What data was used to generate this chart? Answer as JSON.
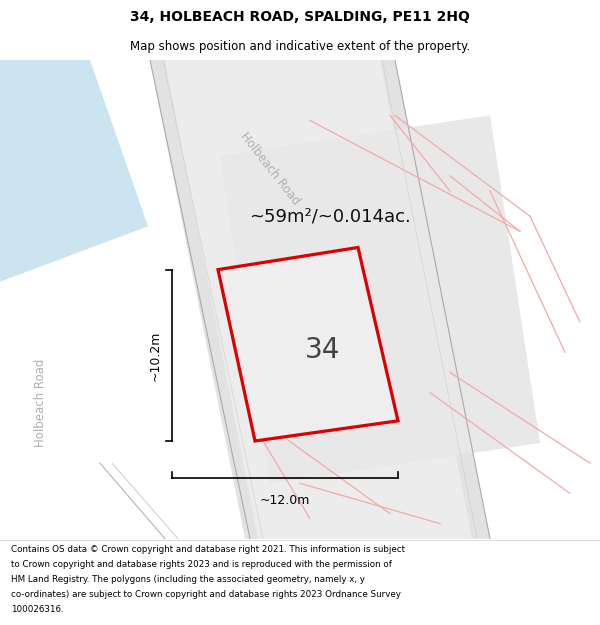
{
  "title": "34, HOLBEACH ROAD, SPALDING, PE11 2HQ",
  "subtitle": "Map shows position and indicative extent of the property.",
  "area_text": "~59m²/~0.014ac.",
  "label_34": "34",
  "dim_height": "~10.2m",
  "dim_width": "~12.0m",
  "road_label_diagonal": "Holbeach Road",
  "road_label_left": "Holbeach Road",
  "footer_lines": [
    "Contains OS data © Crown copyright and database right 2021. This information is subject",
    "to Crown copyright and database rights 2023 and is reproduced with the permission of",
    "HM Land Registry. The polygons (including the associated geometry, namely x, y",
    "co-ordinates) are subject to Crown copyright and database rights 2023 Ordnance Survey",
    "100026316."
  ],
  "map_bg": "#ffffff",
  "plot_stroke": "#dd0000",
  "plot_fill": "#eeeeee",
  "road_fill_dark": "#e2e2e2",
  "road_fill_light": "#ececec",
  "blue_patch": "#cce4ef",
  "light_red": "#f2aaaa",
  "gray_line": "#b8b8b8",
  "dim_color": "#000000",
  "title_color": "#000000",
  "footer_color": "#000000",
  "area_text_color": "#111111",
  "road_label_color": "#b0b0b0",
  "label_color": "#444444"
}
